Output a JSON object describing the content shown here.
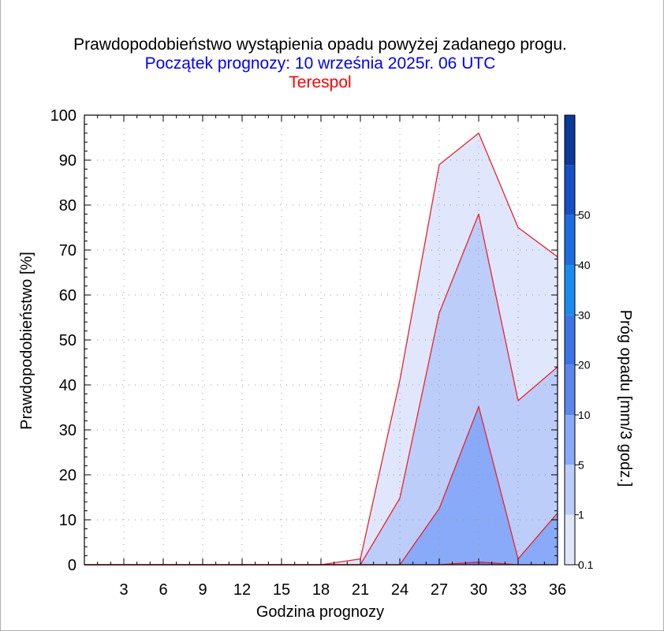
{
  "title": "Prawdopodobieństwo wystąpienia opadu powyżej zadanego progu.",
  "subtitle": "Początek prognozy: 10 września 2025r. 06 UTC",
  "station": "Terespol",
  "chart_data": {
    "type": "area",
    "title": "Prawdopodobieństwo wystąpienia opadu powyżej zadanego progu.",
    "xlabel": "Godzina prognozy",
    "ylabel": "Prawdopodobieństwo [%]",
    "x": [
      0,
      3,
      6,
      9,
      12,
      15,
      18,
      21,
      24,
      27,
      30,
      33,
      36
    ],
    "xticks": [
      "3",
      "6",
      "9",
      "12",
      "15",
      "18",
      "21",
      "24",
      "27",
      "30",
      "33",
      "36"
    ],
    "yticks": [
      "0",
      "10",
      "20",
      "30",
      "40",
      "50",
      "60",
      "70",
      "80",
      "90",
      "100"
    ],
    "xlim": [
      0,
      36
    ],
    "ylim": [
      0,
      100
    ],
    "grid": true,
    "series": [
      {
        "threshold": 0.1,
        "color": "#e0e6fc",
        "values": [
          0,
          0,
          0,
          0,
          0,
          0,
          0,
          1.3,
          41,
          89,
          96,
          75,
          68.5
        ]
      },
      {
        "threshold": 1,
        "color": "#bccdfa",
        "values": [
          0,
          0,
          0,
          0,
          0,
          0,
          0,
          0,
          14.8,
          56,
          78,
          36.5,
          44
        ]
      },
      {
        "threshold": 5,
        "color": "#88aaf8",
        "values": [
          0,
          0,
          0,
          0,
          0,
          0,
          0,
          0,
          0,
          12.5,
          35.2,
          1.3,
          11.5
        ]
      },
      {
        "threshold": 10,
        "color": "#5c86ec",
        "values": [
          0,
          0,
          0,
          0,
          0,
          0,
          0,
          0,
          0,
          0,
          0.6,
          0,
          0
        ]
      }
    ],
    "colorbar": {
      "label": "Próg opadu [mm/3 godz.]",
      "ticks": [
        "0.1",
        "1",
        "5",
        "10",
        "20",
        "30",
        "40",
        "50"
      ],
      "colors": [
        "#e0e6fc",
        "#bccdfa",
        "#88aaf8",
        "#5c86ec",
        "#3c74e8",
        "#1a8cf0",
        "#1c6ee0",
        "#1550c8",
        "#0a3a9a"
      ]
    }
  }
}
